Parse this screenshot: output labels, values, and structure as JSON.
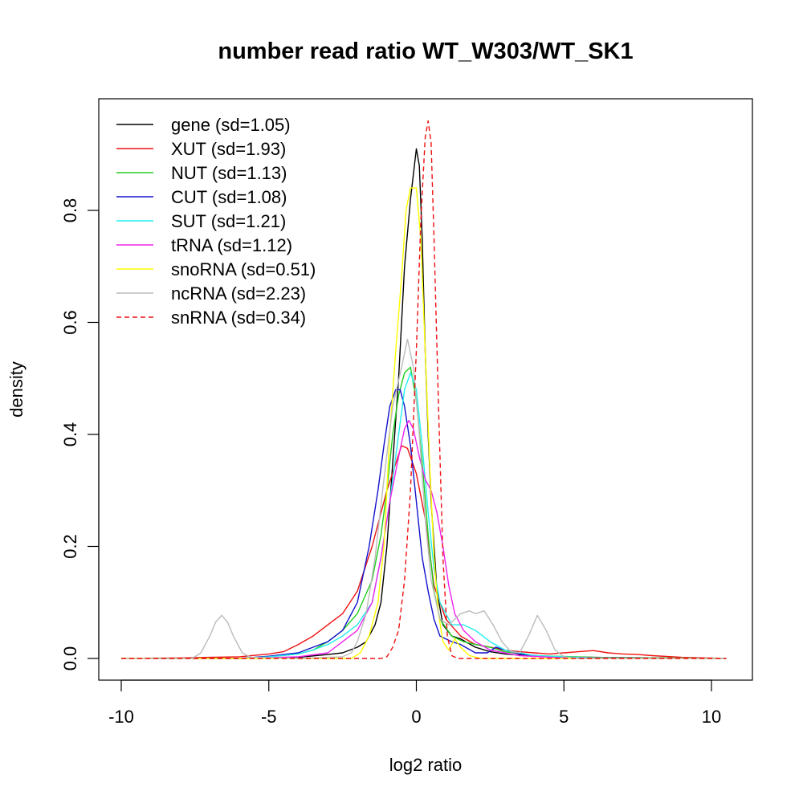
{
  "chart_data": {
    "type": "line",
    "title": "number read ratio WT_W303/WT_SK1",
    "xlabel": "log2 ratio",
    "ylabel": "density",
    "xlim": [
      -10,
      10.5
    ],
    "ylim": [
      0,
      0.96
    ],
    "x_ticks": [
      -10,
      -5,
      0,
      5,
      10
    ],
    "x_tick_labels": [
      "-10",
      "-5",
      "0",
      "5",
      "10"
    ],
    "y_ticks": [
      0,
      0.2,
      0.4,
      0.6,
      0.8
    ],
    "y_tick_labels": [
      "0.0",
      "0.2",
      "0.4",
      "0.6",
      "0.8"
    ],
    "grid": false,
    "legend_position": "top-left",
    "series": [
      {
        "name": "gene (sd=1.05)",
        "color": "#000000",
        "dash": "solid",
        "points": [
          [
            -9,
            0
          ],
          [
            -6,
            0
          ],
          [
            -4,
            0.002
          ],
          [
            -3,
            0.007
          ],
          [
            -2.5,
            0.01
          ],
          [
            -2,
            0.02
          ],
          [
            -1.7,
            0.03
          ],
          [
            -1.4,
            0.06
          ],
          [
            -1.2,
            0.1
          ],
          [
            -1,
            0.2
          ],
          [
            -0.8,
            0.35
          ],
          [
            -0.6,
            0.5
          ],
          [
            -0.4,
            0.7
          ],
          [
            -0.2,
            0.82
          ],
          [
            0,
            0.91
          ],
          [
            0.1,
            0.88
          ],
          [
            0.2,
            0.75
          ],
          [
            0.3,
            0.55
          ],
          [
            0.4,
            0.4
          ],
          [
            0.5,
            0.28
          ],
          [
            0.7,
            0.12
          ],
          [
            0.9,
            0.06
          ],
          [
            1.2,
            0.04
          ],
          [
            1.5,
            0.035
          ],
          [
            2,
            0.02
          ],
          [
            2.5,
            0.012
          ],
          [
            3,
            0.008
          ],
          [
            4,
            0.004
          ],
          [
            6,
            0.002
          ],
          [
            10.5,
            0
          ]
        ]
      },
      {
        "name": "XUT (sd=1.93)",
        "color": "#ee1111",
        "dash": "solid",
        "points": [
          [
            -10,
            0
          ],
          [
            -8,
            0.001
          ],
          [
            -6,
            0.003
          ],
          [
            -5,
            0.008
          ],
          [
            -4.5,
            0.012
          ],
          [
            -4,
            0.025
          ],
          [
            -3.5,
            0.04
          ],
          [
            -3,
            0.06
          ],
          [
            -2.5,
            0.08
          ],
          [
            -2,
            0.12
          ],
          [
            -1.5,
            0.2
          ],
          [
            -1,
            0.3
          ],
          [
            -0.5,
            0.38
          ],
          [
            -0.3,
            0.375
          ],
          [
            0,
            0.33
          ],
          [
            0.3,
            0.25
          ],
          [
            0.6,
            0.13
          ],
          [
            1,
            0.07
          ],
          [
            1.5,
            0.04
          ],
          [
            2,
            0.025
          ],
          [
            2.5,
            0.02
          ],
          [
            3,
            0.015
          ],
          [
            3.5,
            0.012
          ],
          [
            4,
            0.01
          ],
          [
            4.5,
            0.008
          ],
          [
            5,
            0.01
          ],
          [
            5.5,
            0.012
          ],
          [
            6,
            0.014
          ],
          [
            6.5,
            0.01
          ],
          [
            7,
            0.008
          ],
          [
            7.5,
            0.007
          ],
          [
            8,
            0.005
          ],
          [
            9,
            0.002
          ],
          [
            10.5,
            0
          ]
        ]
      },
      {
        "name": "NUT (sd=1.13)",
        "color": "#22cc22",
        "dash": "solid",
        "points": [
          [
            -9,
            0
          ],
          [
            -6,
            0
          ],
          [
            -5,
            0.003
          ],
          [
            -4,
            0.008
          ],
          [
            -3.5,
            0.015
          ],
          [
            -3,
            0.03
          ],
          [
            -2.5,
            0.05
          ],
          [
            -2,
            0.08
          ],
          [
            -1.5,
            0.14
          ],
          [
            -1.2,
            0.22
          ],
          [
            -1,
            0.3
          ],
          [
            -0.8,
            0.4
          ],
          [
            -0.6,
            0.47
          ],
          [
            -0.4,
            0.51
          ],
          [
            -0.2,
            0.52
          ],
          [
            0,
            0.46
          ],
          [
            0.2,
            0.35
          ],
          [
            0.4,
            0.22
          ],
          [
            0.6,
            0.12
          ],
          [
            0.8,
            0.07
          ],
          [
            1.2,
            0.04
          ],
          [
            1.6,
            0.03
          ],
          [
            2,
            0.025
          ],
          [
            2.5,
            0.02
          ],
          [
            3,
            0.012
          ],
          [
            4,
            0.005
          ],
          [
            6,
            0.002
          ],
          [
            10.5,
            0
          ]
        ]
      },
      {
        "name": "CUT (sd=1.08)",
        "color": "#1111cc",
        "dash": "solid",
        "points": [
          [
            -9,
            0
          ],
          [
            -6,
            0
          ],
          [
            -5,
            0.004
          ],
          [
            -4,
            0.01
          ],
          [
            -3.5,
            0.02
          ],
          [
            -3,
            0.03
          ],
          [
            -2.5,
            0.05
          ],
          [
            -2,
            0.1
          ],
          [
            -1.6,
            0.2
          ],
          [
            -1.3,
            0.3
          ],
          [
            -1.1,
            0.38
          ],
          [
            -0.9,
            0.45
          ],
          [
            -0.7,
            0.48
          ],
          [
            -0.55,
            0.48
          ],
          [
            -0.4,
            0.45
          ],
          [
            -0.2,
            0.38
          ],
          [
            0,
            0.28
          ],
          [
            0.2,
            0.18
          ],
          [
            0.4,
            0.12
          ],
          [
            0.6,
            0.07
          ],
          [
            0.8,
            0.04
          ],
          [
            1.2,
            0.03
          ],
          [
            1.5,
            0.025
          ],
          [
            2,
            0.01
          ],
          [
            2.4,
            0.01
          ],
          [
            2.7,
            0.02
          ],
          [
            3,
            0.015
          ],
          [
            3.5,
            0.008
          ],
          [
            4.5,
            0.003
          ],
          [
            6,
            0.001
          ],
          [
            10.5,
            0
          ]
        ]
      },
      {
        "name": "SUT (sd=1.21)",
        "color": "#22eeee",
        "dash": "solid",
        "points": [
          [
            -9,
            0
          ],
          [
            -6,
            0
          ],
          [
            -5,
            0.003
          ],
          [
            -4,
            0.008
          ],
          [
            -3.5,
            0.015
          ],
          [
            -3,
            0.025
          ],
          [
            -2.5,
            0.04
          ],
          [
            -2,
            0.06
          ],
          [
            -1.5,
            0.1
          ],
          [
            -1.2,
            0.18
          ],
          [
            -0.9,
            0.28
          ],
          [
            -0.6,
            0.4
          ],
          [
            -0.4,
            0.48
          ],
          [
            -0.2,
            0.51
          ],
          [
            0,
            0.48
          ],
          [
            0.2,
            0.38
          ],
          [
            0.4,
            0.26
          ],
          [
            0.6,
            0.16
          ],
          [
            0.8,
            0.1
          ],
          [
            1.2,
            0.06
          ],
          [
            1.6,
            0.06
          ],
          [
            2,
            0.05
          ],
          [
            2.5,
            0.03
          ],
          [
            3,
            0.015
          ],
          [
            4,
            0.005
          ],
          [
            6,
            0.001
          ],
          [
            10.5,
            0
          ]
        ]
      },
      {
        "name": "tRNA (sd=1.12)",
        "color": "#ee22ee",
        "dash": "solid",
        "points": [
          [
            -9,
            0
          ],
          [
            -6,
            0
          ],
          [
            -4,
            0.003
          ],
          [
            -3,
            0.01
          ],
          [
            -2.5,
            0.03
          ],
          [
            -2,
            0.05
          ],
          [
            -1.5,
            0.1
          ],
          [
            -1.2,
            0.18
          ],
          [
            -0.9,
            0.28
          ],
          [
            -0.6,
            0.36
          ],
          [
            -0.4,
            0.41
          ],
          [
            -0.25,
            0.425
          ],
          [
            -0.1,
            0.41
          ],
          [
            0.1,
            0.36
          ],
          [
            0.3,
            0.32
          ],
          [
            0.5,
            0.3
          ],
          [
            0.7,
            0.26
          ],
          [
            0.9,
            0.2
          ],
          [
            1.1,
            0.13
          ],
          [
            1.3,
            0.08
          ],
          [
            1.6,
            0.05
          ],
          [
            2,
            0.03
          ],
          [
            2.5,
            0.015
          ],
          [
            3.5,
            0.005
          ],
          [
            5,
            0.001
          ],
          [
            10.5,
            0
          ]
        ]
      },
      {
        "name": "snoRNA (sd=0.51)",
        "color": "#ffff00",
        "dash": "solid",
        "points": [
          [
            -10,
            0
          ],
          [
            -3,
            0
          ],
          [
            -2.2,
            0
          ],
          [
            -1.9,
            0.01
          ],
          [
            -1.6,
            0.04
          ],
          [
            -1.3,
            0.1
          ],
          [
            -1.1,
            0.2
          ],
          [
            -0.9,
            0.4
          ],
          [
            -0.7,
            0.55
          ],
          [
            -0.5,
            0.68
          ],
          [
            -0.35,
            0.8
          ],
          [
            -0.2,
            0.84
          ],
          [
            0,
            0.84
          ],
          [
            0.15,
            0.75
          ],
          [
            0.3,
            0.55
          ],
          [
            0.45,
            0.35
          ],
          [
            0.6,
            0.18
          ],
          [
            0.75,
            0.08
          ],
          [
            0.9,
            0.03
          ],
          [
            1.1,
            0.015
          ],
          [
            1.3,
            0.035
          ],
          [
            1.5,
            0.02
          ],
          [
            1.8,
            0.005
          ],
          [
            2.2,
            0
          ],
          [
            10.5,
            0
          ]
        ]
      },
      {
        "name": "ncRNA (sd=2.23)",
        "color": "#bbbbbb",
        "dash": "solid",
        "points": [
          [
            -10,
            0
          ],
          [
            -7.6,
            0
          ],
          [
            -7.3,
            0.01
          ],
          [
            -7,
            0.04
          ],
          [
            -6.8,
            0.065
          ],
          [
            -6.6,
            0.077
          ],
          [
            -6.4,
            0.065
          ],
          [
            -6.2,
            0.04
          ],
          [
            -5.9,
            0.01
          ],
          [
            -5.6,
            0.002
          ],
          [
            -4,
            0
          ],
          [
            -2.5,
            0.003
          ],
          [
            -2.2,
            0.01
          ],
          [
            -2,
            0.03
          ],
          [
            -1.7,
            0.08
          ],
          [
            -1.4,
            0.18
          ],
          [
            -1.1,
            0.32
          ],
          [
            -0.8,
            0.45
          ],
          [
            -0.5,
            0.52
          ],
          [
            -0.3,
            0.57
          ],
          [
            -0.1,
            0.52
          ],
          [
            0.1,
            0.4
          ],
          [
            0.3,
            0.25
          ],
          [
            0.5,
            0.14
          ],
          [
            0.8,
            0.07
          ],
          [
            1.1,
            0.06
          ],
          [
            1.5,
            0.08
          ],
          [
            1.8,
            0.085
          ],
          [
            2,
            0.08
          ],
          [
            2.3,
            0.085
          ],
          [
            2.6,
            0.06
          ],
          [
            2.9,
            0.03
          ],
          [
            3.2,
            0.012
          ],
          [
            3.5,
            0.01
          ],
          [
            3.8,
            0.04
          ],
          [
            4.1,
            0.077
          ],
          [
            4.4,
            0.05
          ],
          [
            4.7,
            0.015
          ],
          [
            5,
            0.003
          ],
          [
            5.5,
            0
          ],
          [
            10.5,
            0
          ]
        ]
      },
      {
        "name": "snRNA (sd=0.34)",
        "color": "#ee1111",
        "dash": "dashed",
        "points": [
          [
            -10,
            0
          ],
          [
            -1.2,
            0
          ],
          [
            -1.0,
            0.003
          ],
          [
            -0.8,
            0.02
          ],
          [
            -0.6,
            0.05
          ],
          [
            -0.4,
            0.14
          ],
          [
            -0.2,
            0.3
          ],
          [
            0,
            0.55
          ],
          [
            0.15,
            0.78
          ],
          [
            0.3,
            0.93
          ],
          [
            0.4,
            0.96
          ],
          [
            0.5,
            0.92
          ],
          [
            0.6,
            0.75
          ],
          [
            0.75,
            0.45
          ],
          [
            0.9,
            0.18
          ],
          [
            1.05,
            0.04
          ],
          [
            1.2,
            0.005
          ],
          [
            1.4,
            0
          ],
          [
            10.5,
            0
          ]
        ]
      }
    ]
  }
}
